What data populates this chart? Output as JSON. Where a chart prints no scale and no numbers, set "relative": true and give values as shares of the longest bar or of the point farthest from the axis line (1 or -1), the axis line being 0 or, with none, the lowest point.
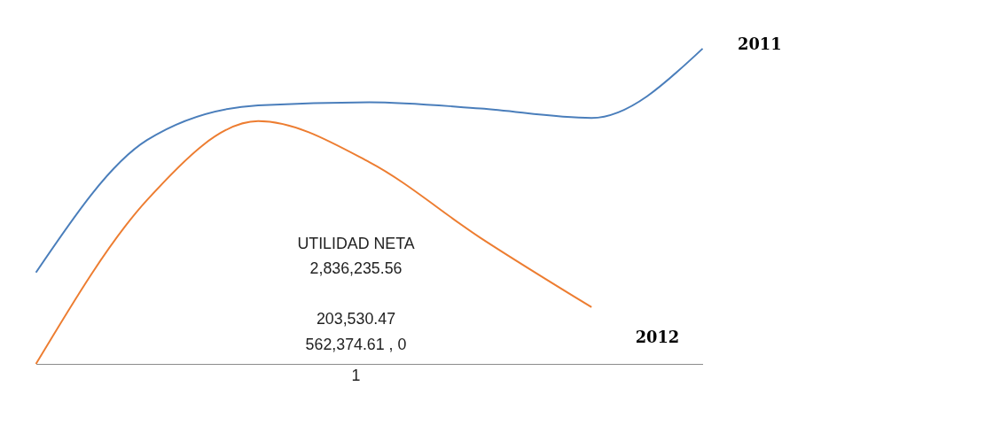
{
  "chart_data": {
    "type": "line",
    "relative": true,
    "categories": [
      null,
      null,
      null,
      null,
      null,
      null,
      null
    ],
    "series": [
      {
        "name": "2011",
        "color": "#4a7ebb",
        "values": [
          0.29,
          0.71,
          0.82,
          0.83,
          0.81,
          0.78,
          1
        ]
      },
      {
        "name": "2012",
        "color": "#ed7d31",
        "values": [
          0,
          0.52,
          0.77,
          0.64,
          0.4,
          0.18,
          null
        ]
      }
    ],
    "annotations": [
      "UTILIDAD NETA",
      "2,836,235.56",
      "203,530.47",
      "562,374.61 , 0",
      "1"
    ],
    "legend": false,
    "marker": "none",
    "line_style": "solid"
  }
}
